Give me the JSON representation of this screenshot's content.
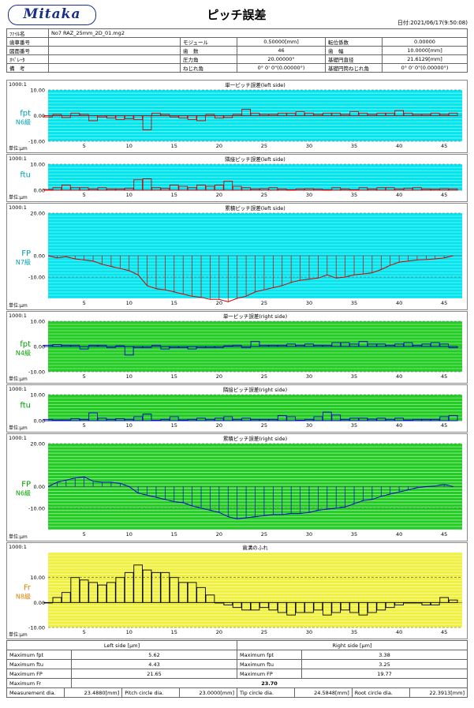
{
  "header": {
    "logo": "Mitaka",
    "title": "ピッチ誤差",
    "date_label": "日付:",
    "date": "2021/06/17(9:50:08)"
  },
  "info": {
    "file_label": "ﾌｧｲﾙ名",
    "file": "No7 RAZ_25mm_2D_01.mg2",
    "gear_no_label": "歯車番号",
    "gear_no": "",
    "drawing_no_label": "図面番号",
    "drawing_no": "",
    "operator_label": "ｵﾍﾟﾚｰﾀ",
    "operator": "",
    "remarks_label": "備　考",
    "remarks": "",
    "module_label": "モジュール",
    "module": "0.50000[mm]",
    "teeth_label": "歯　数",
    "teeth": "46",
    "pressure_angle_label": "圧力角",
    "pressure_angle": "20.00000°",
    "helix_label": "ねじれ角",
    "helix": "0° 0' 0\"(0.00000°)",
    "shift_label": "転位係数",
    "shift": "0.00000",
    "face_width_label": "歯　幅",
    "face_width": "10.0000[mm]",
    "base_dia_label": "基礎円直径",
    "base_dia": "21.6129[mm]",
    "base_helix_label": "基礎円筒ねじれ角",
    "base_helix": "0° 0' 0\"(0.00000°)"
  },
  "colors": {
    "left_bg": "#00e5ee",
    "right_bg": "#22cc22",
    "runout_bg": "#f0f040",
    "left_line": "#cc0000",
    "right_line": "#0000cc",
    "runout_line": "#000000"
  },
  "chart_data": [
    {
      "type": "bar",
      "title": "単一ピッチ誤差(left side)",
      "scale_label": "1000:1",
      "symbol": "fpt",
      "grade": "N6級",
      "unit": "単位:μm",
      "ylim": [
        -10,
        10
      ],
      "yticks": [
        "10.00",
        "0.00",
        "-10.00"
      ],
      "xticks": [
        5,
        10,
        15,
        20,
        25,
        30,
        35,
        40,
        45
      ],
      "grid": true,
      "values": [
        -0.5,
        0.5,
        -0.8,
        1,
        0.5,
        -2,
        -0.5,
        -1,
        -1.5,
        -1.2,
        -1.5,
        -5.5,
        1,
        0.5,
        -0.5,
        -1,
        -1.5,
        -2,
        0.5,
        -1,
        -0.8,
        0.5,
        2.5,
        1,
        0.5,
        0.5,
        1,
        1,
        1.5,
        1,
        0.5,
        1,
        1,
        0.5,
        1.5,
        1,
        0.5,
        1,
        1,
        2,
        1,
        0.5,
        0.5,
        1,
        0.5,
        1
      ]
    },
    {
      "type": "bar",
      "title": "隣接ピッチ誤差(left side)",
      "scale_label": "1000:1",
      "symbol": "ftu",
      "grade": "",
      "unit": "単位:μm",
      "ylim": [
        0,
        10
      ],
      "yticks": [
        "10.00",
        "0.00"
      ],
      "xticks": [
        5,
        10,
        15,
        20,
        25,
        30,
        35,
        40,
        45
      ],
      "grid": true,
      "values": [
        0.3,
        1,
        2,
        1,
        1,
        0.5,
        1,
        0.5,
        0.5,
        0.8,
        4,
        4.4,
        1,
        0.8,
        2,
        1.5,
        1,
        2,
        1.5,
        2,
        3.5,
        1.5,
        1,
        0.5,
        0.6,
        1,
        0.5,
        0.2,
        0.5,
        0.6,
        0.4,
        0.2,
        1,
        0.5,
        0.2,
        1,
        0.5,
        1,
        1,
        0.5,
        0.8,
        1,
        0.5,
        0.4,
        0.6,
        0.5
      ]
    },
    {
      "type": "line",
      "title": "累積ピッチ誤差(left side)",
      "scale_label": "1000:1",
      "symbol": "FP",
      "grade": "N7級",
      "unit": "単位:μm",
      "ylim": [
        -20,
        20
      ],
      "yticks": [
        "20.00",
        "0.00",
        "-10.00"
      ],
      "xticks": [
        5,
        10,
        15,
        20,
        25,
        30,
        35,
        40,
        45
      ],
      "grid": true,
      "values": [
        0,
        -1,
        -0.5,
        -1.5,
        -2,
        -2.5,
        -4,
        -5,
        -6,
        -7,
        -9,
        -14,
        -15.5,
        -16,
        -17,
        -18,
        -19,
        -19.5,
        -20.5,
        -20.5,
        -21.6,
        -20,
        -19,
        -17,
        -16,
        -15,
        -14,
        -12.5,
        -11.5,
        -11,
        -10.5,
        -9,
        -10.5,
        -10,
        -9,
        -8.5,
        -8,
        -6.5,
        -4.5,
        -3,
        -2.5,
        -2,
        -1.8,
        -1.5,
        -1,
        0
      ]
    },
    {
      "type": "bar",
      "title": "単一ピッチ誤差(right side)",
      "scale_label": "1000:1",
      "symbol": "fpt",
      "grade": "N4級",
      "unit": "単位:μm",
      "ylim": [
        -10,
        10
      ],
      "yticks": [
        "10.00",
        "0.00",
        "-10.00"
      ],
      "xticks": [
        5,
        10,
        15,
        20,
        25,
        30,
        35,
        40,
        45
      ],
      "grid": true,
      "values": [
        0.5,
        0.8,
        0.5,
        0.5,
        -1,
        0.5,
        0.5,
        -0.5,
        0.3,
        -3.4,
        -0.5,
        -0.5,
        0.5,
        -1,
        -0.5,
        -0.5,
        -1,
        -0.5,
        -0.5,
        -0.5,
        0.3,
        0.5,
        -0.5,
        2,
        0.5,
        0.5,
        0.5,
        1,
        0.5,
        1,
        0.5,
        0.5,
        1.5,
        1.5,
        1,
        2,
        1,
        1,
        0.5,
        1,
        1.5,
        0.5,
        1,
        1.5,
        1,
        -0.5
      ]
    },
    {
      "type": "bar",
      "title": "隣接ピッチ誤差(right side)",
      "scale_label": "1000:1",
      "symbol": "ftu",
      "grade": "",
      "unit": "単位:μm",
      "ylim": [
        0,
        10
      ],
      "yticks": [
        "10.00",
        "0.00"
      ],
      "xticks": [
        5,
        10,
        15,
        20,
        25,
        30,
        35,
        40,
        45
      ],
      "grid": true,
      "values": [
        0.5,
        0.3,
        0.3,
        0.8,
        0.5,
        3,
        1,
        0.5,
        0.8,
        0.5,
        1.5,
        2.5,
        0.2,
        0.5,
        1.5,
        0.3,
        0.5,
        1,
        0.5,
        1,
        1.5,
        0.5,
        1,
        0.5,
        0.5,
        0.5,
        2,
        1.5,
        0.2,
        0.5,
        1.5,
        3.3,
        2.2,
        0.5,
        1,
        1,
        0.6,
        1,
        0.5,
        1,
        0.3,
        0.5,
        0.5,
        0.5,
        1.5,
        2
      ]
    },
    {
      "type": "line",
      "title": "累積ピッチ誤差(right side)",
      "scale_label": "1000:1",
      "symbol": "FP",
      "grade": "N6級",
      "unit": "単位:μm",
      "ylim": [
        -20,
        20
      ],
      "yticks": [
        "20.00",
        "0.00",
        "-10.00"
      ],
      "xticks": [
        5,
        10,
        15,
        20,
        25,
        30,
        35,
        40,
        45
      ],
      "grid": true,
      "values": [
        0,
        2,
        3,
        4,
        4.5,
        2.5,
        2,
        2,
        1.5,
        0,
        -3,
        -4,
        -5,
        -6,
        -7,
        -7.5,
        -9,
        -10,
        -11,
        -12,
        -14,
        -15,
        -14.5,
        -14,
        -13.5,
        -13,
        -13,
        -12.5,
        -12.5,
        -12,
        -11,
        -10.5,
        -10,
        -9.5,
        -8,
        -6.5,
        -6,
        -4.5,
        -3.5,
        -2.5,
        -1.5,
        -0.5,
        0,
        0.3,
        1,
        0
      ]
    },
    {
      "type": "bar",
      "title": "歯溝のふれ",
      "scale_label": "1000:1",
      "symbol": "Fr",
      "grade": "N8級",
      "unit": "単位:μm",
      "ylim": [
        -10,
        20
      ],
      "yticks": [
        "10.00",
        "0.00",
        "-10.00"
      ],
      "xticks": [
        5,
        10,
        15,
        20,
        25,
        30,
        35,
        40,
        45
      ],
      "grid": true,
      "values": [
        0,
        2,
        4,
        10,
        9,
        8,
        7,
        8,
        10,
        12,
        15,
        13,
        12,
        12,
        10,
        8,
        8,
        6,
        3,
        0,
        -1,
        -2,
        -3,
        -3,
        -2,
        -3,
        -4,
        -5,
        -4,
        -4,
        -3,
        -5,
        -4,
        -3,
        -4,
        -5,
        -4,
        -3,
        -2,
        -1,
        0,
        0,
        -1,
        -1,
        2,
        1
      ]
    }
  ],
  "summary": {
    "left_header": "Left side [μm]",
    "right_header": "Right side [μm]",
    "rows": [
      {
        "label": "Maximum fpt",
        "left": "5.62",
        "rlabel": "Maximum fpt",
        "right": "3.38"
      },
      {
        "label": "Maximum ftu",
        "left": "4.43",
        "rlabel": "Maximum ftu",
        "right": "3.25"
      },
      {
        "label": "Maximum FP",
        "left": "21.65",
        "rlabel": "Maximum FP",
        "right": "19.77"
      }
    ],
    "fr_label": "Maximum Fr",
    "fr": "23.70",
    "dims": [
      {
        "label": "Measurement dia.",
        "value": "23.4880[mm]"
      },
      {
        "label": "Pitch circle dia.",
        "value": "23.0000[mm]"
      },
      {
        "label": "Tip circle dia.",
        "value": "24.5848[mm]"
      },
      {
        "label": "Root circle dia.",
        "value": "22.3913[mm]"
      }
    ]
  }
}
